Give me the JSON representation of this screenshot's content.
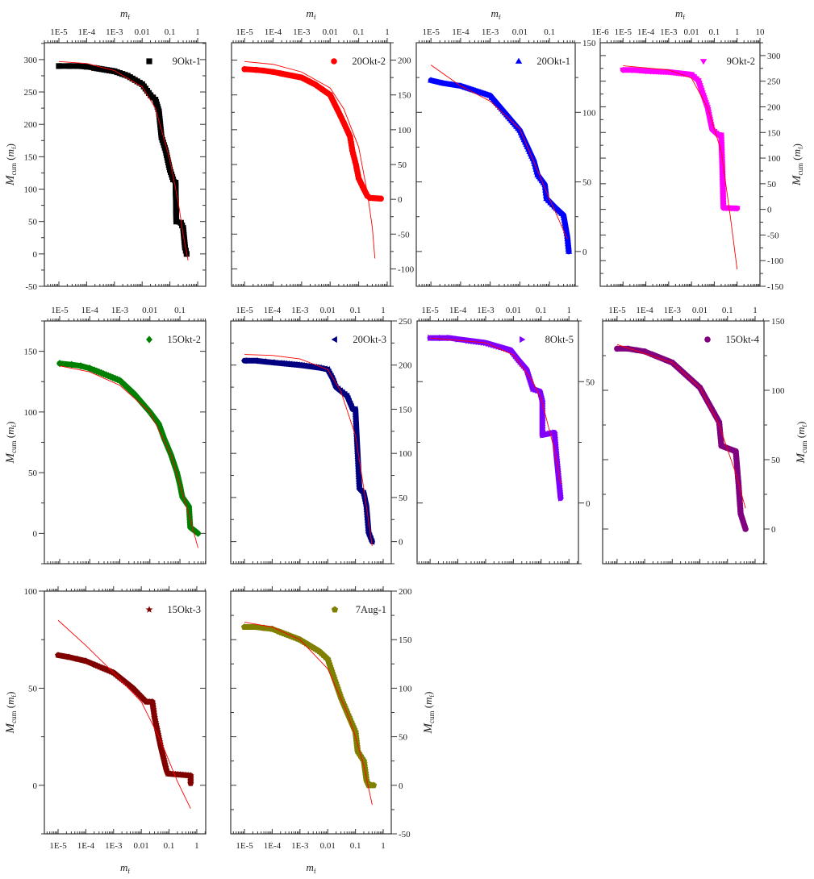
{
  "x_axis_label": {
    "symbol": "m",
    "subscript": "f"
  },
  "y_axis_label": {
    "symbol": "M",
    "subscript": "cum",
    "argument": "m",
    "argument_subscript": "f"
  },
  "chart_data": [
    {
      "type": "scatter",
      "name": "9Okt-1",
      "color": "#000000",
      "marker": "square",
      "x_scale": "log",
      "xlim": [
        3e-06,
        1.95
      ],
      "ylim": [
        -50,
        326
      ],
      "xtick_labels": [
        "1E-5",
        "1E-4",
        "1E-3",
        "0.01",
        "0.1",
        "1"
      ],
      "xticks": [
        1e-05,
        0.0001,
        0.001,
        0.01,
        0.1,
        1
      ],
      "yticks": [
        -50,
        0,
        50,
        100,
        150,
        200,
        250,
        300
      ],
      "ytick_side": "left",
      "xtick_side": "top",
      "show_xlabel": true,
      "show_ylabel": true,
      "points": [
        [
          1e-05,
          290
        ],
        [
          2.5e-05,
          290
        ],
        [
          4.5e-05,
          290
        ],
        [
          0.0001,
          289
        ],
        [
          0.001,
          282
        ],
        [
          0.003,
          275
        ],
        [
          0.01,
          262
        ],
        [
          0.02,
          245
        ],
        [
          0.03,
          238
        ],
        [
          0.04,
          220
        ],
        [
          0.05,
          180
        ],
        [
          0.07,
          160
        ],
        [
          0.1,
          130
        ],
        [
          0.13,
          115
        ],
        [
          0.16,
          110
        ],
        [
          0.17,
          50
        ],
        [
          0.25,
          48
        ],
        [
          0.3,
          40
        ],
        [
          0.35,
          10
        ],
        [
          0.4,
          0
        ]
      ],
      "fit": [
        [
          1e-05,
          297
        ],
        [
          0.0001,
          294
        ],
        [
          0.001,
          283
        ],
        [
          0.01,
          258
        ],
        [
          0.03,
          225
        ],
        [
          0.1,
          145
        ],
        [
          0.2,
          80
        ],
        [
          0.3,
          30
        ],
        [
          0.45,
          -10
        ]
      ]
    },
    {
      "type": "scatter",
      "name": "20Okt-2",
      "color": "#ff0000",
      "marker": "circle",
      "x_scale": "log",
      "xlim": [
        3.5e-06,
        1.3
      ],
      "ylim": [
        -125,
        225
      ],
      "xtick_labels": [
        "1E-5",
        "1E-4",
        "1E-3",
        "0.01",
        "0.1",
        "1"
      ],
      "xticks": [
        1e-05,
        0.0001,
        0.001,
        0.01,
        0.1,
        1
      ],
      "yticks": [
        -100,
        -50,
        0,
        50,
        100,
        150,
        200
      ],
      "ytick_side": "right",
      "xtick_side": "top",
      "show_xlabel": true,
      "show_ylabel": false,
      "points": [
        [
          1e-05,
          187
        ],
        [
          2.5e-05,
          186
        ],
        [
          4.5e-05,
          185
        ],
        [
          0.0001,
          183
        ],
        [
          0.001,
          175
        ],
        [
          0.003,
          165
        ],
        [
          0.01,
          150
        ],
        [
          0.02,
          125
        ],
        [
          0.03,
          110
        ],
        [
          0.05,
          90
        ],
        [
          0.06,
          70
        ],
        [
          0.08,
          50
        ],
        [
          0.1,
          30
        ],
        [
          0.15,
          15
        ],
        [
          0.2,
          5
        ],
        [
          0.25,
          2
        ],
        [
          0.6,
          1
        ]
      ],
      "fit": [
        [
          1e-05,
          198
        ],
        [
          0.0001,
          194
        ],
        [
          0.001,
          183
        ],
        [
          0.01,
          160
        ],
        [
          0.03,
          130
        ],
        [
          0.1,
          75
        ],
        [
          0.2,
          10
        ],
        [
          0.3,
          -40
        ],
        [
          0.37,
          -85
        ]
      ]
    },
    {
      "type": "scatter",
      "name": "20Okt-1",
      "color": "#0000ff",
      "marker": "triangle-up",
      "x_scale": "log",
      "xlim": [
        3.2e-06,
        0.74
      ],
      "ylim": [
        -25,
        150
      ],
      "xtick_labels": [
        "1E-5",
        "1E-4",
        "1E-3",
        "0.01",
        "0.1"
      ],
      "xticks": [
        1e-05,
        0.0001,
        0.001,
        0.01,
        0.1
      ],
      "yticks": [
        0,
        50,
        100,
        150
      ],
      "ytick_side": "right",
      "xtick_side": "top",
      "show_xlabel": true,
      "show_ylabel": false,
      "points": [
        [
          1e-05,
          123
        ],
        [
          2.5e-05,
          121
        ],
        [
          5e-05,
          120
        ],
        [
          0.0001,
          119
        ],
        [
          0.001,
          112
        ],
        [
          0.01,
          87
        ],
        [
          0.03,
          65
        ],
        [
          0.04,
          55
        ],
        [
          0.07,
          48
        ],
        [
          0.08,
          38
        ],
        [
          0.15,
          32
        ],
        [
          0.3,
          26
        ],
        [
          0.4,
          11
        ],
        [
          0.45,
          0
        ]
      ],
      "fit": [
        [
          1e-05,
          134
        ],
        [
          0.0001,
          119
        ],
        [
          0.001,
          108
        ],
        [
          0.01,
          88
        ],
        [
          0.1,
          38
        ],
        [
          0.4,
          9
        ]
      ]
    },
    {
      "type": "scatter",
      "name": "9Okt-2",
      "color": "#ff00ff",
      "marker": "triangle-down",
      "x_scale": "log",
      "xlim": [
        1e-06,
        10
      ],
      "ylim": [
        -150,
        325
      ],
      "xtick_labels": [
        "1E-6",
        "1E-5",
        "1E-4",
        "1E-3",
        "0.01",
        "0.1",
        "1",
        "10"
      ],
      "xticks": [
        1e-06,
        1e-05,
        0.0001,
        0.001,
        0.01,
        0.1,
        1,
        10
      ],
      "yticks": [
        -150,
        -100,
        -50,
        0,
        50,
        100,
        150,
        200,
        250,
        300
      ],
      "ytick_side": "right",
      "xtick_side": "top",
      "show_xlabel": true,
      "show_ylabel": true,
      "points": [
        [
          1e-05,
          272
        ],
        [
          2.5e-05,
          272
        ],
        [
          0.0001,
          270
        ],
        [
          0.001,
          268
        ],
        [
          0.01,
          263
        ],
        [
          0.02,
          251
        ],
        [
          0.05,
          199
        ],
        [
          0.08,
          156
        ],
        [
          0.15,
          145
        ],
        [
          0.2,
          145
        ],
        [
          0.22,
          93
        ],
        [
          0.25,
          3
        ],
        [
          1,
          2
        ]
      ],
      "fit": [
        [
          1e-05,
          280
        ],
        [
          0.001,
          272
        ],
        [
          0.01,
          256
        ],
        [
          0.05,
          199
        ],
        [
          0.2,
          114
        ],
        [
          0.5,
          -13
        ],
        [
          1,
          -117
        ]
      ]
    },
    {
      "type": "scatter",
      "name": "15Okt-2",
      "color": "#008000",
      "marker": "diamond",
      "x_scale": "log",
      "xlim": [
        3.1e-06,
        0.72
      ],
      "ylim": [
        -25,
        175
      ],
      "xtick_labels": [
        "1E-5",
        "1E-4",
        "1E-3",
        "0.01",
        "0.1"
      ],
      "xticks": [
        1e-05,
        0.0001,
        0.001,
        0.01,
        0.1
      ],
      "yticks": [
        0,
        50,
        100,
        150
      ],
      "ytick_side": "left",
      "xtick_side": "top",
      "show_xlabel": false,
      "show_ylabel": true,
      "points": [
        [
          1e-05,
          140
        ],
        [
          2.5e-05,
          139
        ],
        [
          5e-05,
          138
        ],
        [
          0.0001,
          136
        ],
        [
          0.001,
          126
        ],
        [
          0.003,
          115
        ],
        [
          0.01,
          100
        ],
        [
          0.02,
          90
        ],
        [
          0.03,
          78
        ],
        [
          0.05,
          65
        ],
        [
          0.08,
          50
        ],
        [
          0.1,
          40
        ],
        [
          0.12,
          30
        ],
        [
          0.2,
          22
        ],
        [
          0.22,
          5
        ],
        [
          0.4,
          0
        ]
      ],
      "fit": [
        [
          1e-05,
          138
        ],
        [
          0.0001,
          133
        ],
        [
          0.001,
          122
        ],
        [
          0.01,
          100
        ],
        [
          0.05,
          65
        ],
        [
          0.1,
          40
        ],
        [
          0.2,
          15
        ],
        [
          0.4,
          -12
        ]
      ]
    },
    {
      "type": "scatter",
      "name": "20Okt-3",
      "color": "#000080",
      "marker": "triangle-left",
      "x_scale": "log",
      "xlim": [
        3.2e-06,
        1.95
      ],
      "ylim": [
        -25,
        250
      ],
      "xtick_labels": [
        "1E-5",
        "1E-4",
        "1E-3",
        "0.01",
        "0.1",
        "1"
      ],
      "xticks": [
        1e-05,
        0.0001,
        0.001,
        0.01,
        0.1,
        1
      ],
      "yticks": [
        0,
        50,
        100,
        150,
        200,
        250
      ],
      "ytick_side": "right",
      "xtick_side": "top",
      "show_xlabel": false,
      "show_ylabel": false,
      "points": [
        [
          1e-05,
          205
        ],
        [
          2.5e-05,
          205
        ],
        [
          5e-05,
          204
        ],
        [
          0.0001,
          203
        ],
        [
          0.001,
          200
        ],
        [
          0.005,
          197
        ],
        [
          0.01,
          195
        ],
        [
          0.015,
          185
        ],
        [
          0.02,
          175
        ],
        [
          0.05,
          165
        ],
        [
          0.08,
          150
        ],
        [
          0.1,
          150
        ],
        [
          0.12,
          100
        ],
        [
          0.14,
          60
        ],
        [
          0.2,
          55
        ],
        [
          0.25,
          40
        ],
        [
          0.3,
          10
        ],
        [
          0.4,
          0
        ]
      ],
      "fit": [
        [
          1e-05,
          212
        ],
        [
          0.0001,
          211
        ],
        [
          0.001,
          207
        ],
        [
          0.01,
          195
        ],
        [
          0.03,
          170
        ],
        [
          0.1,
          120
        ],
        [
          0.2,
          60
        ],
        [
          0.4,
          -5
        ]
      ]
    },
    {
      "type": "scatter",
      "name": "8Okt-5",
      "color": "#8000ff",
      "marker": "triangle-right",
      "x_scale": "log",
      "xlim": [
        3.4e-06,
        2.2
      ],
      "ylim": [
        -25,
        75
      ],
      "xtick_labels": [
        "1E-5",
        "1E-4",
        "1E-3",
        "0.01",
        "0.1",
        "1"
      ],
      "xticks": [
        1e-05,
        0.0001,
        0.001,
        0.01,
        0.1,
        1
      ],
      "yticks": [
        0,
        50
      ],
      "ytick_side": "right",
      "xtick_side": "top",
      "show_xlabel": false,
      "show_ylabel": false,
      "points": [
        [
          1e-05,
          68
        ],
        [
          2.5e-05,
          68
        ],
        [
          5e-05,
          68
        ],
        [
          0.0001,
          67.5
        ],
        [
          0.001,
          66
        ],
        [
          0.008,
          63
        ],
        [
          0.015,
          59
        ],
        [
          0.03,
          55
        ],
        [
          0.05,
          47
        ],
        [
          0.09,
          46
        ],
        [
          0.11,
          42
        ],
        [
          0.11,
          28
        ],
        [
          0.3,
          29
        ],
        [
          0.35,
          20
        ],
        [
          0.5,
          2
        ]
      ],
      "fit": [
        [
          1e-05,
          68
        ],
        [
          0.001,
          66
        ],
        [
          0.01,
          61
        ],
        [
          0.05,
          50
        ],
        [
          0.1,
          43
        ],
        [
          0.3,
          22
        ],
        [
          0.5,
          8
        ]
      ]
    },
    {
      "type": "scatter",
      "name": "15Okt-4",
      "color": "#800080",
      "marker": "circle",
      "x_scale": "log",
      "xlim": [
        3e-06,
        2.1
      ],
      "ylim": [
        -25,
        150
      ],
      "xtick_labels": [
        "1E-5",
        "1E-4",
        "1E-3",
        "0.01",
        "0.1",
        "1"
      ],
      "xticks": [
        1e-05,
        0.0001,
        0.001,
        0.01,
        0.1,
        1
      ],
      "yticks": [
        0,
        50,
        100,
        150
      ],
      "ytick_side": "right",
      "xtick_side": "top",
      "show_xlabel": false,
      "show_ylabel": true,
      "points": [
        [
          1e-05,
          130
        ],
        [
          2.5e-05,
          130
        ],
        [
          5e-05,
          129
        ],
        [
          0.0001,
          128
        ],
        [
          0.001,
          120
        ],
        [
          0.01,
          102
        ],
        [
          0.05,
          77
        ],
        [
          0.06,
          60
        ],
        [
          0.2,
          56
        ],
        [
          0.25,
          33
        ],
        [
          0.3,
          11
        ],
        [
          0.45,
          0
        ]
      ],
      "fit": [
        [
          1e-05,
          133
        ],
        [
          0.001,
          120
        ],
        [
          0.01,
          102
        ],
        [
          0.05,
          75
        ],
        [
          0.2,
          40
        ],
        [
          0.45,
          15
        ]
      ]
    },
    {
      "type": "scatter",
      "name": "15Okt-3",
      "color": "#800000",
      "marker": "star",
      "x_scale": "log",
      "xlim": [
        3.2e-06,
        2.1
      ],
      "ylim": [
        -25,
        100
      ],
      "xtick_labels": [
        "1E-5",
        "1E-4",
        "1E-3",
        "0.01",
        "0.1",
        "1"
      ],
      "xticks": [
        1e-05,
        0.0001,
        0.001,
        0.01,
        0.1,
        1
      ],
      "yticks": [
        0,
        50,
        100
      ],
      "ytick_side": "left",
      "xtick_side": "bottom",
      "show_xlabel": true,
      "show_ylabel": true,
      "points": [
        [
          1e-05,
          67
        ],
        [
          2.5e-05,
          66
        ],
        [
          5e-05,
          65
        ],
        [
          0.0001,
          64
        ],
        [
          0.001,
          58
        ],
        [
          0.005,
          50
        ],
        [
          0.015,
          43
        ],
        [
          0.025,
          43
        ],
        [
          0.03,
          35
        ],
        [
          0.05,
          20
        ],
        [
          0.08,
          8
        ],
        [
          0.09,
          6
        ],
        [
          0.6,
          5
        ],
        [
          0.6,
          1
        ]
      ],
      "fit": [
        [
          1e-05,
          85
        ],
        [
          0.0001,
          72
        ],
        [
          0.001,
          58
        ],
        [
          0.01,
          43
        ],
        [
          0.05,
          23
        ],
        [
          0.2,
          2
        ],
        [
          0.6,
          -12
        ]
      ]
    },
    {
      "type": "scatter",
      "name": "7Aug-1",
      "color": "#808000",
      "marker": "pentagon",
      "x_scale": "log",
      "xlim": [
        3.2e-06,
        1.95
      ],
      "ylim": [
        -50,
        200
      ],
      "xtick_labels": [
        "1E-5",
        "1E-4",
        "1E-3",
        "0.01",
        "0.1",
        "1"
      ],
      "xticks": [
        1e-05,
        0.0001,
        0.001,
        0.01,
        0.1,
        1
      ],
      "yticks": [
        -50,
        0,
        50,
        100,
        150,
        200
      ],
      "ytick_side": "right",
      "xtick_side": "bottom",
      "show_xlabel": true,
      "show_ylabel": true,
      "points": [
        [
          1e-05,
          163
        ],
        [
          2.5e-05,
          163
        ],
        [
          5e-05,
          162
        ],
        [
          0.0001,
          161
        ],
        [
          0.001,
          150
        ],
        [
          0.005,
          138
        ],
        [
          0.01,
          130
        ],
        [
          0.015,
          115
        ],
        [
          0.03,
          90
        ],
        [
          0.05,
          75
        ],
        [
          0.1,
          55
        ],
        [
          0.12,
          35
        ],
        [
          0.2,
          25
        ],
        [
          0.25,
          5
        ],
        [
          0.3,
          0
        ],
        [
          0.45,
          0
        ]
      ],
      "fit": [
        [
          1e-05,
          168
        ],
        [
          0.0001,
          163
        ],
        [
          0.001,
          150
        ],
        [
          0.01,
          120
        ],
        [
          0.05,
          75
        ],
        [
          0.1,
          50
        ],
        [
          0.2,
          20
        ],
        [
          0.4,
          -20
        ]
      ]
    }
  ],
  "fit_color": "#ff0000"
}
